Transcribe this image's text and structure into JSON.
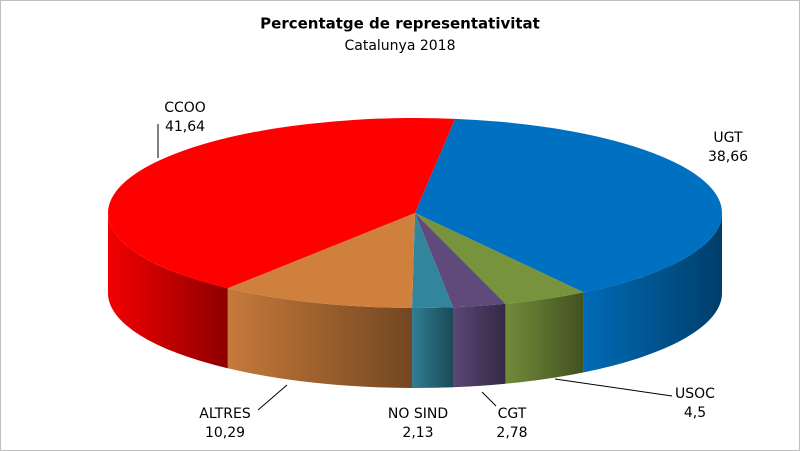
{
  "chart_data": {
    "type": "pie3d",
    "title": "Percentatge de representativitat",
    "subtitle": "Catalunya 2018",
    "categories": [
      "UGT",
      "USOC",
      "CGT",
      "NO SIND",
      "ALTRES",
      "CCOO"
    ],
    "values": [
      38.66,
      4.5,
      2.78,
      2.13,
      10.29,
      41.64
    ],
    "value_labels": [
      "38,66",
      "4,5",
      "2,78",
      "2,13",
      "10,29",
      "41,64"
    ],
    "colors": [
      "#0070c0",
      "#77933c",
      "#604a7b",
      "#31859c",
      "#d0803d",
      "#ff0000"
    ]
  }
}
